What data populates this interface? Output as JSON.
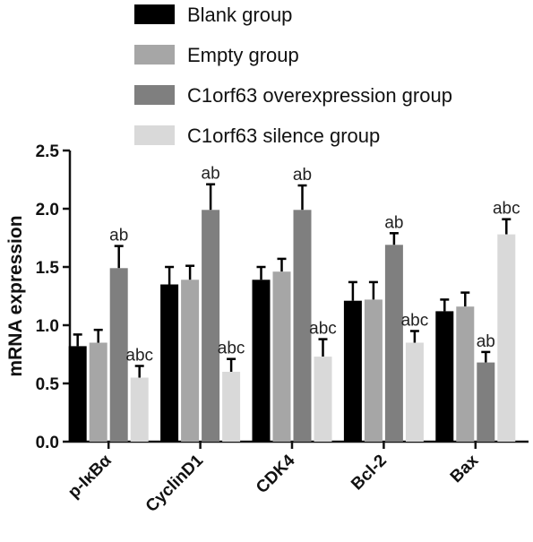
{
  "chart_data": {
    "type": "bar",
    "title": "",
    "xlabel": "",
    "ylabel": "mRNA expression",
    "ylim": [
      0,
      2.5
    ],
    "yticks": [
      "0.0",
      "0.5",
      "1.0",
      "1.5",
      "2.0",
      "2.5"
    ],
    "categories": [
      "p-IκBα",
      "CyclinD1",
      "CDK4",
      "Bcl-2",
      "Bax"
    ],
    "legend_position": "top",
    "grid": false,
    "series": [
      {
        "name": "Blank group",
        "color": "#000000",
        "values": [
          0.82,
          1.35,
          1.39,
          1.21,
          1.12
        ],
        "errors": [
          0.1,
          0.15,
          0.11,
          0.16,
          0.1
        ],
        "annotations": [
          "",
          "",
          "",
          "",
          ""
        ]
      },
      {
        "name": "Empty group",
        "color": "#a6a6a6",
        "values": [
          0.85,
          1.39,
          1.46,
          1.22,
          1.16
        ],
        "errors": [
          0.11,
          0.12,
          0.11,
          0.15,
          0.12
        ],
        "annotations": [
          "",
          "",
          "",
          "",
          ""
        ]
      },
      {
        "name": "C1orf63 overexpression group",
        "color": "#7f7f7f",
        "values": [
          1.49,
          1.99,
          1.99,
          1.69,
          0.68
        ],
        "errors": [
          0.19,
          0.22,
          0.21,
          0.1,
          0.09
        ],
        "annotations": [
          "ab",
          "ab",
          "ab",
          "ab",
          "ab"
        ]
      },
      {
        "name": "C1orf63 silence group",
        "color": "#d9d9d9",
        "values": [
          0.55,
          0.6,
          0.73,
          0.85,
          1.78
        ],
        "errors": [
          0.1,
          0.11,
          0.15,
          0.1,
          0.13
        ],
        "annotations": [
          "abc",
          "abc",
          "abc",
          "abc",
          "abc"
        ]
      }
    ]
  }
}
